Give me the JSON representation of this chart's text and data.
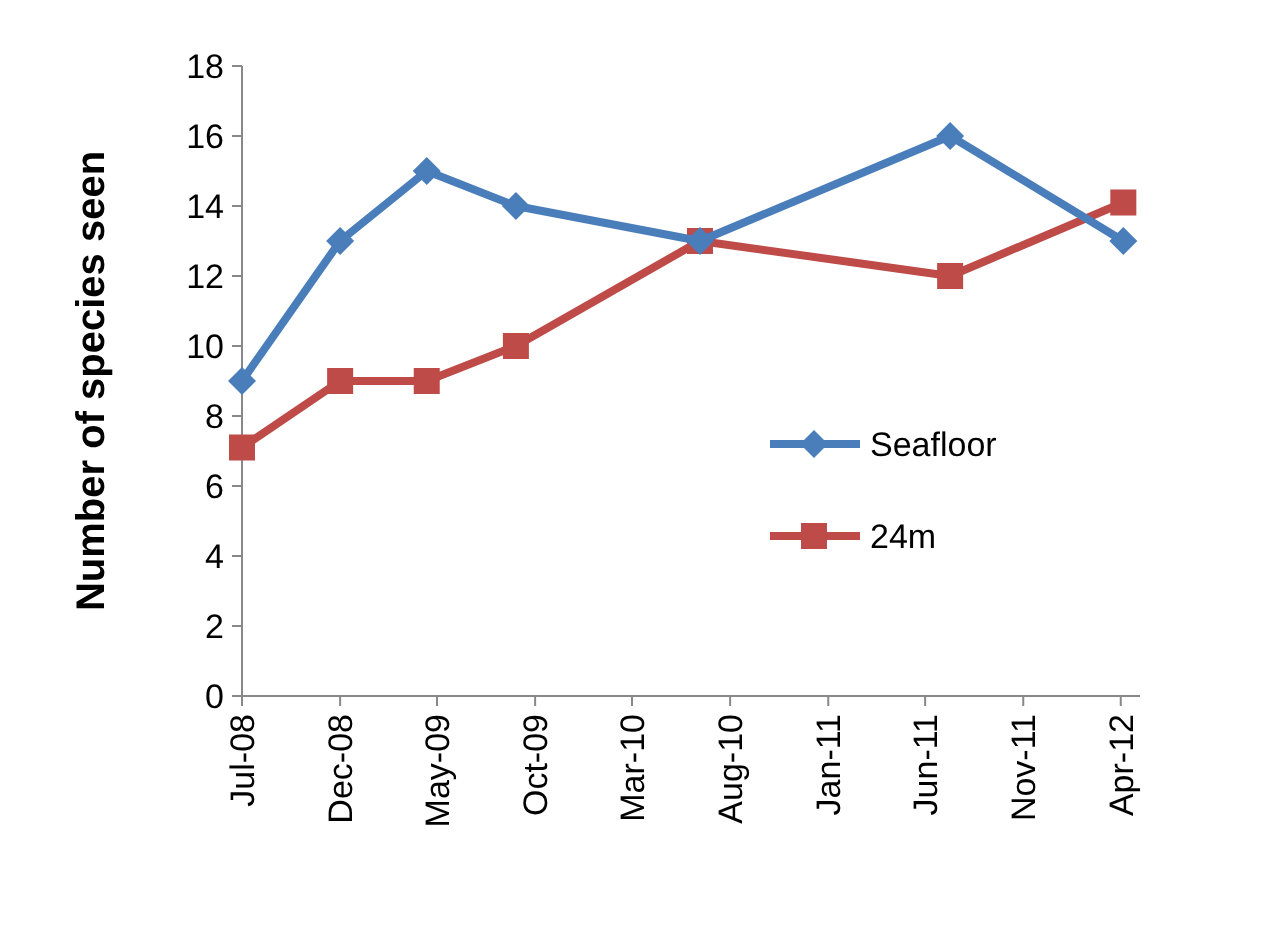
{
  "chart_data": {
    "type": "line",
    "ylabel": "Number of species seen",
    "ylim": [
      0,
      18
    ],
    "yticks": [
      0,
      2,
      4,
      6,
      8,
      10,
      12,
      14,
      16,
      18
    ],
    "xlim": [
      "2008-07-01",
      "2012-05-01"
    ],
    "xticks": [
      {
        "value": "2008-07-01",
        "label": "Jul-08"
      },
      {
        "value": "2008-12-01",
        "label": "Dec-08"
      },
      {
        "value": "2009-05-01",
        "label": "May-09"
      },
      {
        "value": "2009-10-01",
        "label": "Oct-09"
      },
      {
        "value": "2010-03-01",
        "label": "Mar-10"
      },
      {
        "value": "2010-08-01",
        "label": "Aug-10"
      },
      {
        "value": "2011-01-01",
        "label": "Jan-11"
      },
      {
        "value": "2011-06-01",
        "label": "Jun-11"
      },
      {
        "value": "2011-11-01",
        "label": "Nov-11"
      },
      {
        "value": "2012-04-01",
        "label": "Apr-12"
      }
    ],
    "x": [
      "2008-07-01",
      "2008-12-01",
      "2009-04-15",
      "2009-09-01",
      "2010-06-15",
      "2011-07-10",
      "2012-04-05"
    ],
    "series": [
      {
        "name": "Seafloor",
        "color": "#4a7ebb",
        "marker": "diamond",
        "values": [
          9,
          13,
          15,
          14,
          13,
          16,
          13
        ]
      },
      {
        "name": "24m",
        "color": "#be4b48",
        "marker": "square",
        "values": [
          7.1,
          9,
          9,
          10,
          13,
          12,
          14.1
        ]
      }
    ],
    "legend": "right",
    "grid": false,
    "line_style": "solid"
  }
}
